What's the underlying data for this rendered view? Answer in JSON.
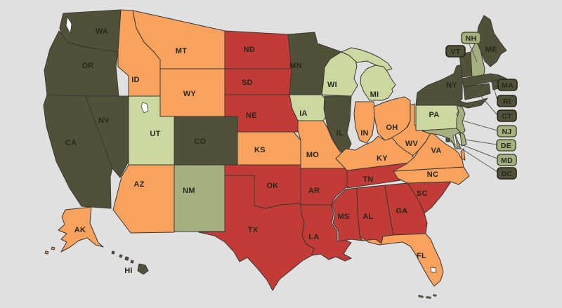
{
  "map": {
    "background_color": "#e0e0e0",
    "water_color": "#ffffff",
    "land_detail_color": "#55544a",
    "state_border_color": "#3a3833",
    "label_color": "#26291f",
    "leader_line_color": "#5c5c5c",
    "categories": {
      "dark_olive": {
        "fill": "#4f5138",
        "pill_border": "#232616"
      },
      "sage": {
        "fill": "#a6af7e",
        "pill_border": "#4a5130"
      },
      "light_green": {
        "fill": "#ccd8a0",
        "pill_border": "#6b7244"
      },
      "orange": {
        "fill": "#f8a25e",
        "pill_border": "#8a5a2a"
      },
      "red": {
        "fill": "#c23b36",
        "pill_border": "#5e1d1d"
      }
    },
    "states": [
      {
        "abbr": "WA",
        "category": "dark_olive"
      },
      {
        "abbr": "OR",
        "category": "dark_olive"
      },
      {
        "abbr": "CA",
        "category": "dark_olive"
      },
      {
        "abbr": "NV",
        "category": "dark_olive"
      },
      {
        "abbr": "ID",
        "category": "orange"
      },
      {
        "abbr": "MT",
        "category": "orange"
      },
      {
        "abbr": "WY",
        "category": "orange"
      },
      {
        "abbr": "UT",
        "category": "light_green"
      },
      {
        "abbr": "CO",
        "category": "dark_olive"
      },
      {
        "abbr": "AZ",
        "category": "orange"
      },
      {
        "abbr": "NM",
        "category": "sage"
      },
      {
        "abbr": "ND",
        "category": "red"
      },
      {
        "abbr": "SD",
        "category": "red"
      },
      {
        "abbr": "NE",
        "category": "red"
      },
      {
        "abbr": "KS",
        "category": "orange"
      },
      {
        "abbr": "OK",
        "category": "red"
      },
      {
        "abbr": "TX",
        "category": "red"
      },
      {
        "abbr": "MN",
        "category": "dark_olive"
      },
      {
        "abbr": "IA",
        "category": "light_green"
      },
      {
        "abbr": "MO",
        "category": "orange"
      },
      {
        "abbr": "AR",
        "category": "red"
      },
      {
        "abbr": "LA",
        "category": "red"
      },
      {
        "abbr": "WI",
        "category": "light_green"
      },
      {
        "abbr": "IL",
        "category": "dark_olive"
      },
      {
        "abbr": "MI",
        "category": "light_green"
      },
      {
        "abbr": "IN",
        "category": "orange"
      },
      {
        "abbr": "OH",
        "category": "orange"
      },
      {
        "abbr": "KY",
        "category": "orange"
      },
      {
        "abbr": "TN",
        "category": "red"
      },
      {
        "abbr": "MS",
        "category": "red"
      },
      {
        "abbr": "AL",
        "category": "red"
      },
      {
        "abbr": "GA",
        "category": "red"
      },
      {
        "abbr": "FL",
        "category": "orange"
      },
      {
        "abbr": "SC",
        "category": "red"
      },
      {
        "abbr": "NC",
        "category": "orange"
      },
      {
        "abbr": "VA",
        "category": "orange"
      },
      {
        "abbr": "WV",
        "category": "orange"
      },
      {
        "abbr": "PA",
        "category": "light_green"
      },
      {
        "abbr": "NY",
        "category": "dark_olive"
      },
      {
        "abbr": "VT",
        "category": "dark_olive"
      },
      {
        "abbr": "NH",
        "category": "sage"
      },
      {
        "abbr": "ME",
        "category": "dark_olive"
      },
      {
        "abbr": "MA",
        "category": "dark_olive"
      },
      {
        "abbr": "RI",
        "category": "dark_olive"
      },
      {
        "abbr": "CT",
        "category": "dark_olive"
      },
      {
        "abbr": "NJ",
        "category": "sage"
      },
      {
        "abbr": "DE",
        "category": "sage"
      },
      {
        "abbr": "MD",
        "category": "sage"
      },
      {
        "abbr": "DC",
        "category": "dark_olive"
      },
      {
        "abbr": "AK",
        "category": "orange"
      },
      {
        "abbr": "HI",
        "category": "dark_olive"
      }
    ],
    "callouts": [
      "NH",
      "VT",
      "MA",
      "RI",
      "CT",
      "NJ",
      "DE",
      "MD",
      "DC"
    ]
  }
}
